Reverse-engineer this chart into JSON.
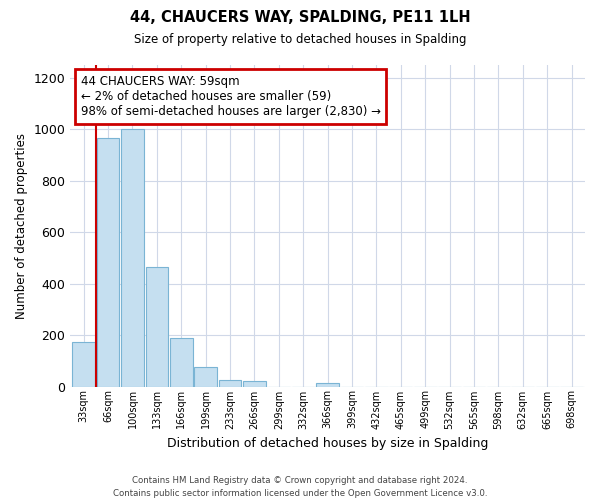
{
  "title": "44, CHAUCERS WAY, SPALDING, PE11 1LH",
  "subtitle": "Size of property relative to detached houses in Spalding",
  "xlabel": "Distribution of detached houses by size in Spalding",
  "ylabel": "Number of detached properties",
  "bin_labels": [
    "33sqm",
    "66sqm",
    "100sqm",
    "133sqm",
    "166sqm",
    "199sqm",
    "233sqm",
    "266sqm",
    "299sqm",
    "332sqm",
    "366sqm",
    "399sqm",
    "432sqm",
    "465sqm",
    "499sqm",
    "532sqm",
    "565sqm",
    "598sqm",
    "632sqm",
    "665sqm",
    "698sqm"
  ],
  "bar_heights": [
    175,
    965,
    1000,
    465,
    190,
    75,
    25,
    20,
    0,
    0,
    15,
    0,
    0,
    0,
    0,
    0,
    0,
    0,
    0,
    0,
    0
  ],
  "bar_color": "#c5dff0",
  "bar_edge_color": "#7ab4d4",
  "annotation_title": "44 CHAUCERS WAY: 59sqm",
  "annotation_line1": "← 2% of detached houses are smaller (59)",
  "annotation_line2": "98% of semi-detached houses are larger (2,830) →",
  "ylim": [
    0,
    1250
  ],
  "yticks": [
    0,
    200,
    400,
    600,
    800,
    1000,
    1200
  ],
  "footnote1": "Contains HM Land Registry data © Crown copyright and database right 2024.",
  "footnote2": "Contains public sector information licensed under the Open Government Licence v3.0.",
  "bg_color": "#ffffff",
  "grid_color": "#d0d8e8",
  "annotation_box_color": "#ffffff",
  "annotation_border_color": "#cc0000",
  "red_line_color": "#cc0000"
}
